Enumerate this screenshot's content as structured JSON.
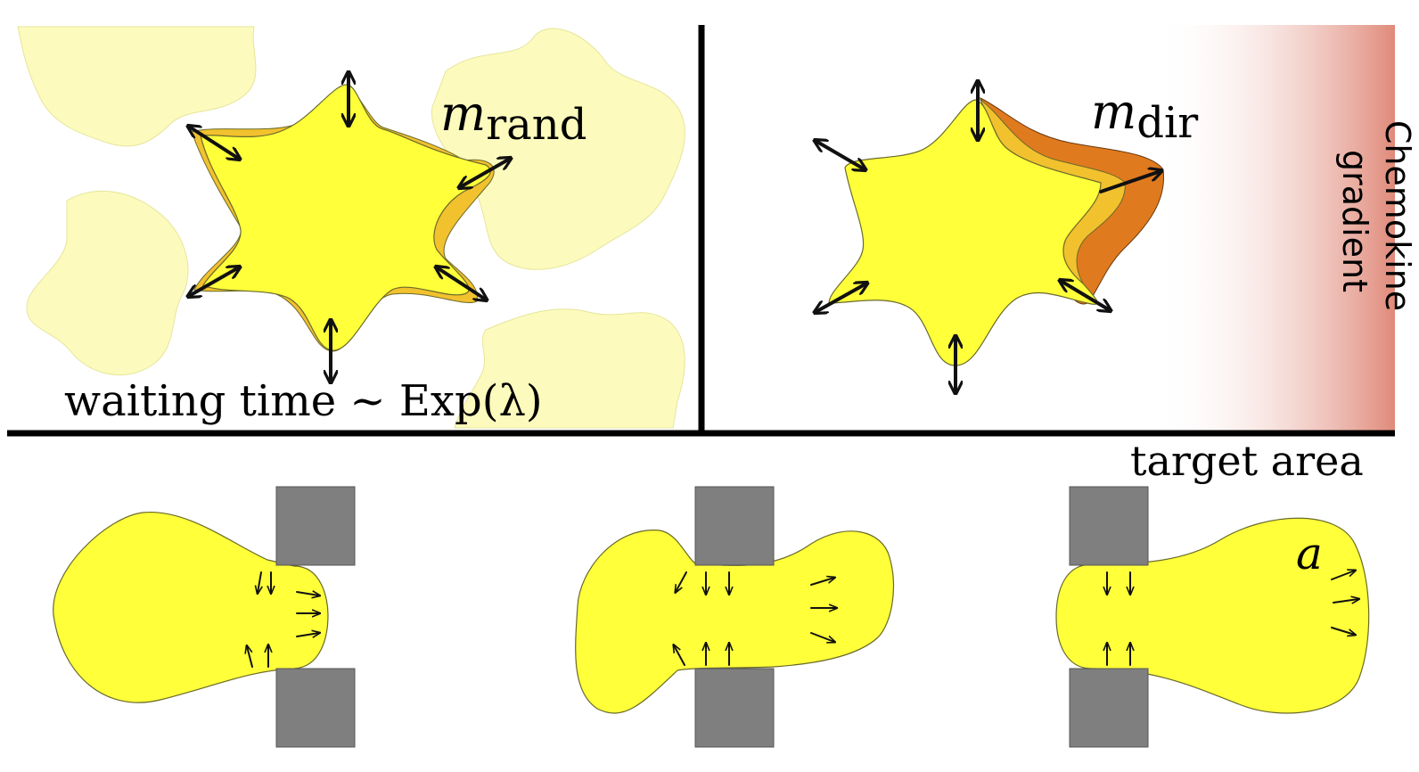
{
  "panels": {
    "random": {
      "label_main": "m",
      "label_sub": "rand",
      "waiting_text": "waiting time ~ Exp(λ)"
    },
    "directed": {
      "label_main": "m",
      "label_sub": "dir",
      "gradient_label_line1": "Chemokine",
      "gradient_label_line2": "gradient"
    },
    "target": {
      "label": "target area",
      "cell_label": "a"
    }
  },
  "colors": {
    "cell_fill": "#ffff3a",
    "protrusion_light": "#f2c12e",
    "protrusion_dark": "#e07a1e",
    "ghost_fill": "#fcfbbd",
    "gradient_end": "#e08a7a",
    "obstacle": "#7f7f7f"
  },
  "icons": [
    "double-arrow-icon",
    "arrow-icon"
  ]
}
